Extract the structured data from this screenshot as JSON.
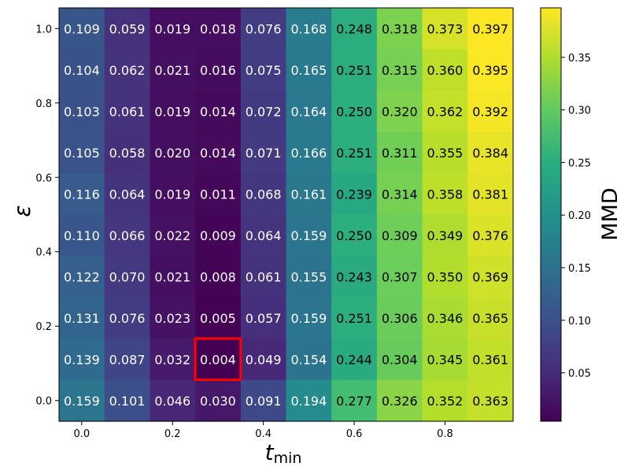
{
  "chart_data": {
    "type": "heatmap",
    "title": "",
    "xlabel": "t",
    "xlabel_subscript": "min",
    "ylabel": "ε",
    "colorbar_label": "MMD",
    "x": [
      0.0,
      0.1,
      0.2,
      0.3,
      0.4,
      0.5,
      0.6,
      0.7,
      0.8,
      0.9
    ],
    "y": [
      0.0,
      0.111,
      0.222,
      0.333,
      0.444,
      0.556,
      0.667,
      0.778,
      0.889,
      1.0
    ],
    "x_ticks": [
      0.0,
      0.2,
      0.4,
      0.6,
      0.8
    ],
    "x_tick_labels": [
      "0.0",
      "0.2",
      "0.4",
      "0.6",
      "0.8"
    ],
    "y_ticks": [
      0.0,
      0.2,
      0.4,
      0.6,
      0.8,
      1.0
    ],
    "y_tick_labels": [
      "0.0",
      "0.2",
      "0.4",
      "0.6",
      "0.8",
      "1.0"
    ],
    "colorbar_ticks": [
      0.05,
      0.1,
      0.15,
      0.2,
      0.25,
      0.3,
      0.35
    ],
    "colorbar_tick_labels": [
      "0.05",
      "0.10",
      "0.15",
      "0.20",
      "0.25",
      "0.30",
      "0.35"
    ],
    "color_range": [
      0.004,
      0.397
    ],
    "colormap": "viridis",
    "rows_top_to_bottom": [
      [
        "0.109",
        "0.059",
        "0.019",
        "0.018",
        "0.076",
        "0.168",
        "0.248",
        "0.318",
        "0.373",
        "0.397"
      ],
      [
        "0.104",
        "0.062",
        "0.021",
        "0.016",
        "0.075",
        "0.165",
        "0.251",
        "0.315",
        "0.360",
        "0.395"
      ],
      [
        "0.103",
        "0.061",
        "0.019",
        "0.014",
        "0.072",
        "0.164",
        "0.250",
        "0.320",
        "0.362",
        "0.392"
      ],
      [
        "0.105",
        "0.058",
        "0.020",
        "0.014",
        "0.071",
        "0.166",
        "0.251",
        "0.311",
        "0.355",
        "0.384"
      ],
      [
        "0.116",
        "0.064",
        "0.019",
        "0.011",
        "0.068",
        "0.161",
        "0.239",
        "0.314",
        "0.358",
        "0.381"
      ],
      [
        "0.110",
        "0.066",
        "0.022",
        "0.009",
        "0.064",
        "0.159",
        "0.250",
        "0.309",
        "0.349",
        "0.376"
      ],
      [
        "0.122",
        "0.070",
        "0.021",
        "0.008",
        "0.061",
        "0.155",
        "0.243",
        "0.307",
        "0.350",
        "0.369"
      ],
      [
        "0.131",
        "0.076",
        "0.023",
        "0.005",
        "0.057",
        "0.159",
        "0.251",
        "0.306",
        "0.346",
        "0.365"
      ],
      [
        "0.139",
        "0.087",
        "0.032",
        "0.004",
        "0.049",
        "0.154",
        "0.244",
        "0.304",
        "0.345",
        "0.361"
      ],
      [
        "0.159",
        "0.101",
        "0.046",
        "0.030",
        "0.091",
        "0.194",
        "0.277",
        "0.326",
        "0.352",
        "0.363"
      ]
    ],
    "highlight": {
      "x": 0.3,
      "y": 0.111,
      "value": "0.004",
      "color": "#ff0000"
    },
    "grid": false,
    "legend": "colorbar-right"
  }
}
